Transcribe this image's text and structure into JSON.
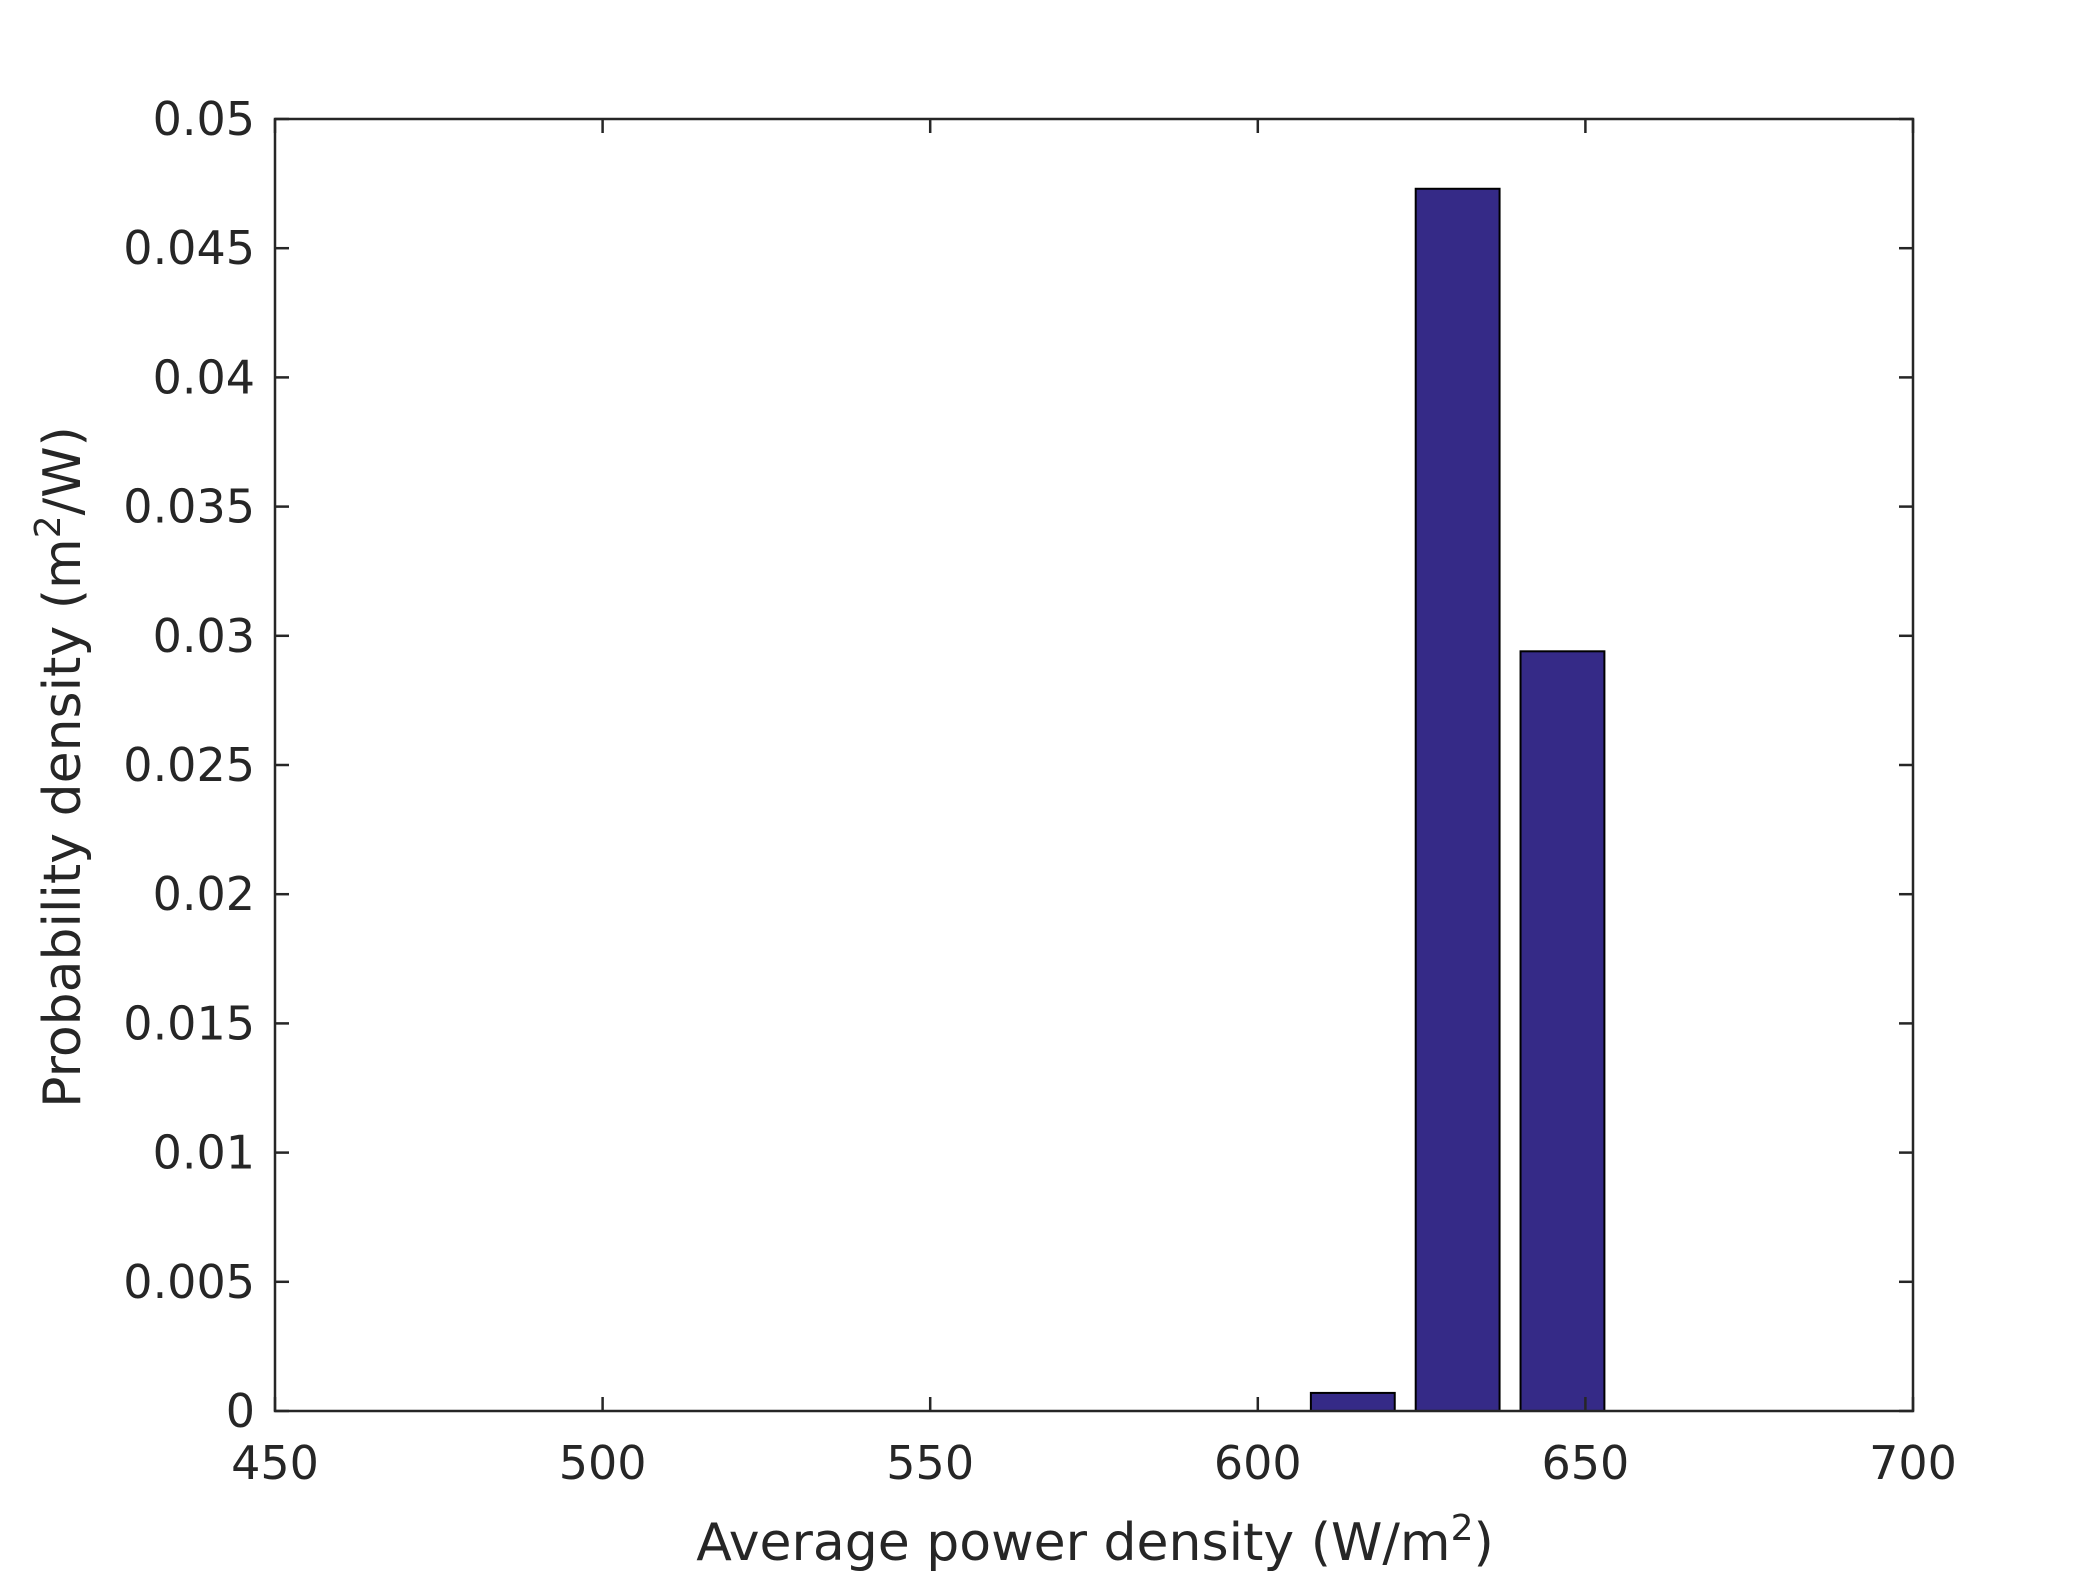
{
  "chart_data": {
    "type": "bar",
    "title": "",
    "xlabel": "Average power density (W/m",
    "xlabel_sup": "2",
    "xlabel_suffix": ")",
    "ylabel": "Probability density (m",
    "ylabel_sup": "2",
    "ylabel_suffix": "/W)",
    "xlim": [
      450,
      700
    ],
    "ylim": [
      0,
      0.05
    ],
    "x_ticks": [
      450,
      500,
      550,
      600,
      650,
      700
    ],
    "x_tick_labels": [
      "450",
      "500",
      "550",
      "600",
      "650",
      "700"
    ],
    "y_ticks": [
      0,
      0.005,
      0.01,
      0.015,
      0.02,
      0.025,
      0.03,
      0.035,
      0.04,
      0.045,
      0.05
    ],
    "y_tick_labels": [
      "0",
      "0.005",
      "0.01",
      "0.015",
      "0.02",
      "0.025",
      "0.03",
      "0.035",
      "0.04",
      "0.045",
      "0.05"
    ],
    "bin_width": 16,
    "bar_width": 12.8,
    "bars": [
      {
        "x": 614.5,
        "value": 0.0007
      },
      {
        "x": 630.5,
        "value": 0.0473
      },
      {
        "x": 646.5,
        "value": 0.0294
      }
    ],
    "bar_color": "#352a87",
    "grid": false,
    "legend": "none"
  }
}
